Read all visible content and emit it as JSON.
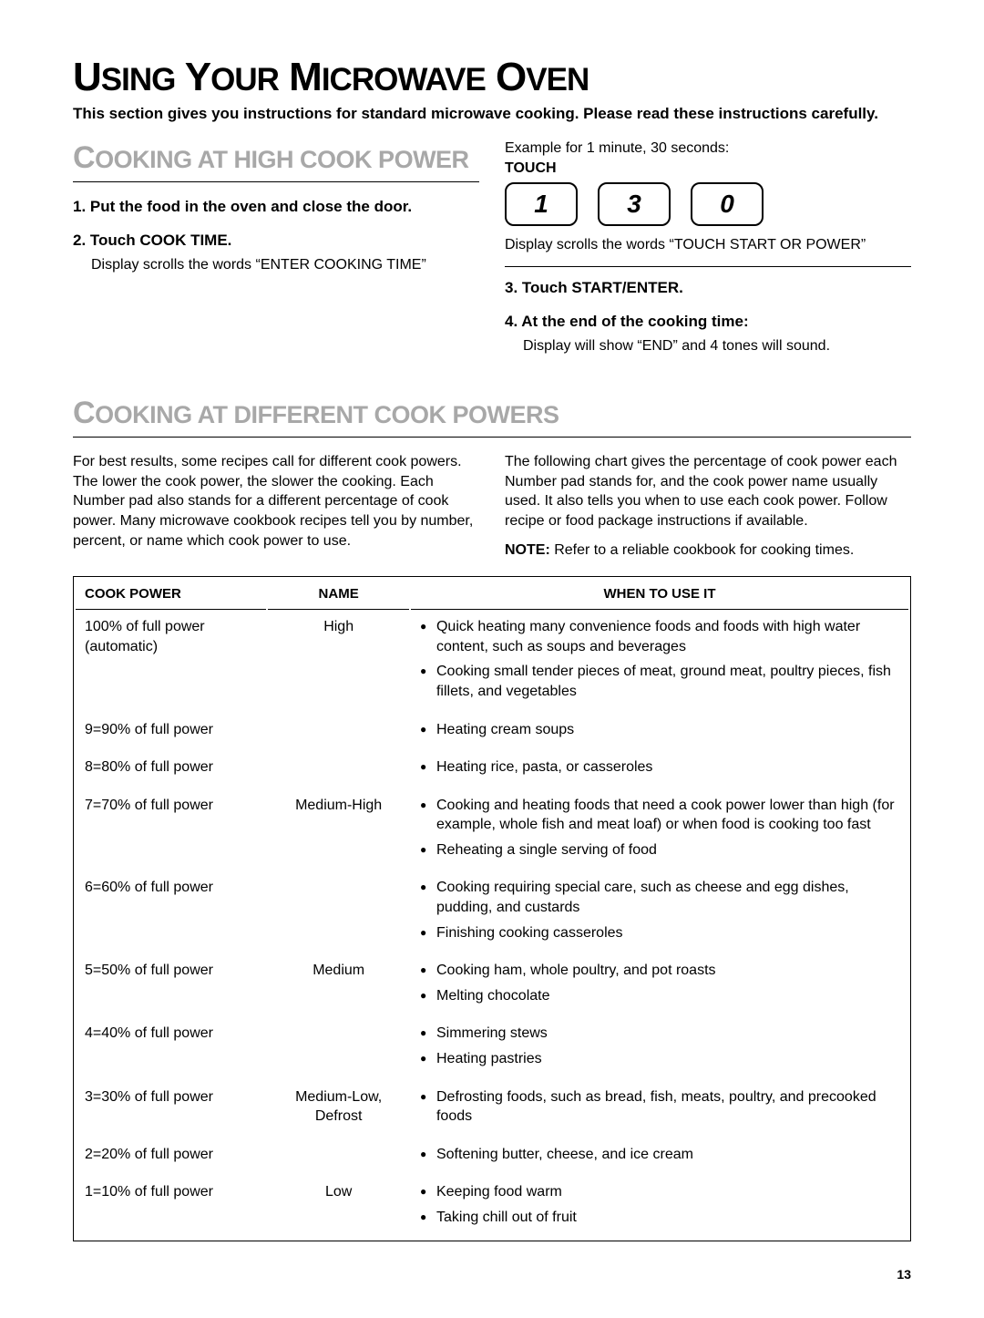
{
  "page": {
    "title_parts": [
      "U",
      "SING",
      " Y",
      "OUR",
      " M",
      "ICROWAVE",
      " O",
      "VEN"
    ],
    "intro": "This section gives you instructions for standard microwave cooking. Please read these instructions carefully.",
    "page_number": "13"
  },
  "section1": {
    "heading_parts": [
      "C",
      "OOKING AT HIGH COOK POWER"
    ],
    "step1": "1. Put the food in the oven and close the door.",
    "step2": "2. Touch COOK TIME.",
    "step2_sub": "Display scrolls the words “ENTER COOKING TIME”",
    "example_label": "Example for 1 minute, 30 seconds:",
    "touch_label": "TOUCH",
    "keys": [
      "1",
      "3",
      "0"
    ],
    "display_text": "Display scrolls the words “TOUCH START OR POWER”",
    "step3": "3. Touch START/ENTER.",
    "step4": "4. At the end of the cooking time:",
    "step4_sub": "Display will show “END” and 4 tones will sound."
  },
  "section2": {
    "heading_parts": [
      "C",
      "OOKING AT DIFFERENT COOK POWERS"
    ],
    "para_left": "For best results, some recipes call for different cook powers. The lower the cook power, the slower the cooking. Each Number pad also stands for a different percentage of cook power. Many microwave cookbook recipes tell you by number, percent, or name which cook power to use.",
    "para_right": "The following chart gives the percentage of cook power each Number pad stands for, and the cook power name usually used. It also tells you when to use each cook power. Follow recipe or food package instructions if available.",
    "note_bold": "NOTE:",
    "note_text": " Refer to a reliable cookbook for cooking times."
  },
  "table": {
    "headers": {
      "power": "COOK POWER",
      "name": "NAME",
      "use": "WHEN TO USE IT"
    },
    "rows": [
      {
        "power": "100% of full power (automatic)",
        "name": "High",
        "uses": [
          "Quick heating many convenience foods and foods with high water content, such as soups and beverages",
          "Cooking small tender pieces of meat, ground meat, poultry pieces, fish fillets, and vegetables"
        ]
      },
      {
        "power": "9=90% of full power",
        "name": "",
        "uses": [
          "Heating cream soups"
        ]
      },
      {
        "power": "8=80% of full power",
        "name": "",
        "uses": [
          "Heating rice, pasta, or casseroles"
        ]
      },
      {
        "power": "7=70% of full power",
        "name": "Medium-High",
        "uses": [
          "Cooking and heating foods that need a cook power lower than high (for example, whole fish and meat loaf) or when food is cooking too fast",
          "Reheating a single serving of food"
        ]
      },
      {
        "power": "6=60% of full power",
        "name": "",
        "uses": [
          "Cooking requiring special care, such as cheese and egg dishes, pudding, and custards",
          "Finishing cooking casseroles"
        ]
      },
      {
        "power": "5=50% of full power",
        "name": "Medium",
        "uses": [
          "Cooking ham, whole poultry, and pot roasts",
          "Melting chocolate"
        ]
      },
      {
        "power": "4=40% of full power",
        "name": "",
        "uses": [
          "Simmering stews",
          "Heating pastries"
        ]
      },
      {
        "power": "3=30% of full power",
        "name": "Medium-Low, Defrost",
        "uses": [
          "Defrosting foods, such as bread, fish, meats, poultry, and precooked foods"
        ]
      },
      {
        "power": "2=20% of full power",
        "name": "",
        "uses": [
          "Softening butter, cheese, and ice cream"
        ]
      },
      {
        "power": "1=10% of full power",
        "name": "Low",
        "uses": [
          "Keeping food warm",
          "Taking chill out of fruit"
        ]
      }
    ]
  }
}
